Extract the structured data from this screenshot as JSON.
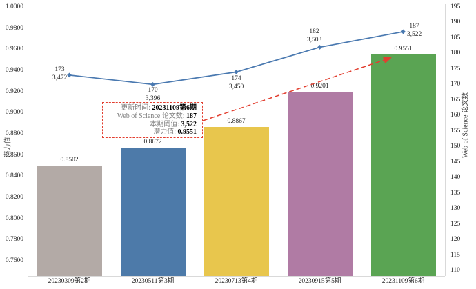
{
  "chart_data": {
    "type": "combo-bar-line",
    "title": "",
    "categories": [
      "20230309第2期",
      "20230511第3期",
      "20230713第4期",
      "20230915第5期",
      "20231109第6期"
    ],
    "series": [
      {
        "name": "潜力值",
        "type": "bar",
        "axis": "left",
        "values": [
          0.8502,
          0.8672,
          0.8867,
          0.9201,
          0.9551
        ],
        "value_labels": [
          "0.8502",
          "0.8672",
          "0.8867",
          "0.9201",
          "0.9551"
        ],
        "bar_colors": [
          "#b3aaa6",
          "#4d7aa9",
          "#e8c64d",
          "#b07ba4",
          "#5aa453"
        ]
      },
      {
        "name": "Web of Science 论文数",
        "type": "line",
        "axis": "right",
        "values": [
          173,
          170,
          174,
          182,
          187
        ],
        "point_labels": [
          [
            "173",
            "3,472"
          ],
          [
            "170",
            "3,396"
          ],
          [
            "174",
            "3,450"
          ],
          [
            "182",
            "3,503"
          ],
          [
            "187",
            "3,522"
          ]
        ],
        "label_offsets": [
          [
            -14,
            -14
          ],
          [
            0,
            3
          ],
          [
            0,
            4
          ],
          [
            -8,
            -28
          ],
          [
            16,
            -14
          ]
        ],
        "color": "#4a79b0"
      }
    ],
    "left_axis": {
      "title": "潜力值",
      "min": 0.76,
      "max": 1.0,
      "step": 0.02,
      "ticks": [
        "1.0000",
        "0.9800",
        "0.9600",
        "0.9400",
        "0.9200",
        "0.9000",
        "0.8800",
        "0.8600",
        "0.8400",
        "0.8200",
        "0.8000",
        "0.7800",
        "0.7600"
      ]
    },
    "right_axis": {
      "title": "Web of Science 论文数",
      "min": 110,
      "max": 195,
      "step": 5,
      "ticks": [
        "195",
        "190",
        "185",
        "180",
        "175",
        "170",
        "165",
        "160",
        "155",
        "150",
        "145",
        "140",
        "135",
        "130",
        "125",
        "120",
        "115",
        "110"
      ]
    },
    "grid": false,
    "legend": "none",
    "annotation": {
      "border_color": "#e23f30",
      "arrow_color": "#e23f30",
      "arrow_style": "dashed",
      "arrow_target": "top of 20231109第6期 bar",
      "rows": [
        {
          "label": "更新时间: ",
          "value": "20231109第6期"
        },
        {
          "label": "Web of Science 论文数: ",
          "value": "187"
        },
        {
          "label": "本期阈值: ",
          "value": "3,522"
        },
        {
          "label": "潜力值: ",
          "value": "0.9551"
        }
      ]
    }
  },
  "colors": {
    "axis_line": "#d9d9d9",
    "text": "#262626",
    "annotation_label": "#808080",
    "annotation_value": "#000000"
  }
}
